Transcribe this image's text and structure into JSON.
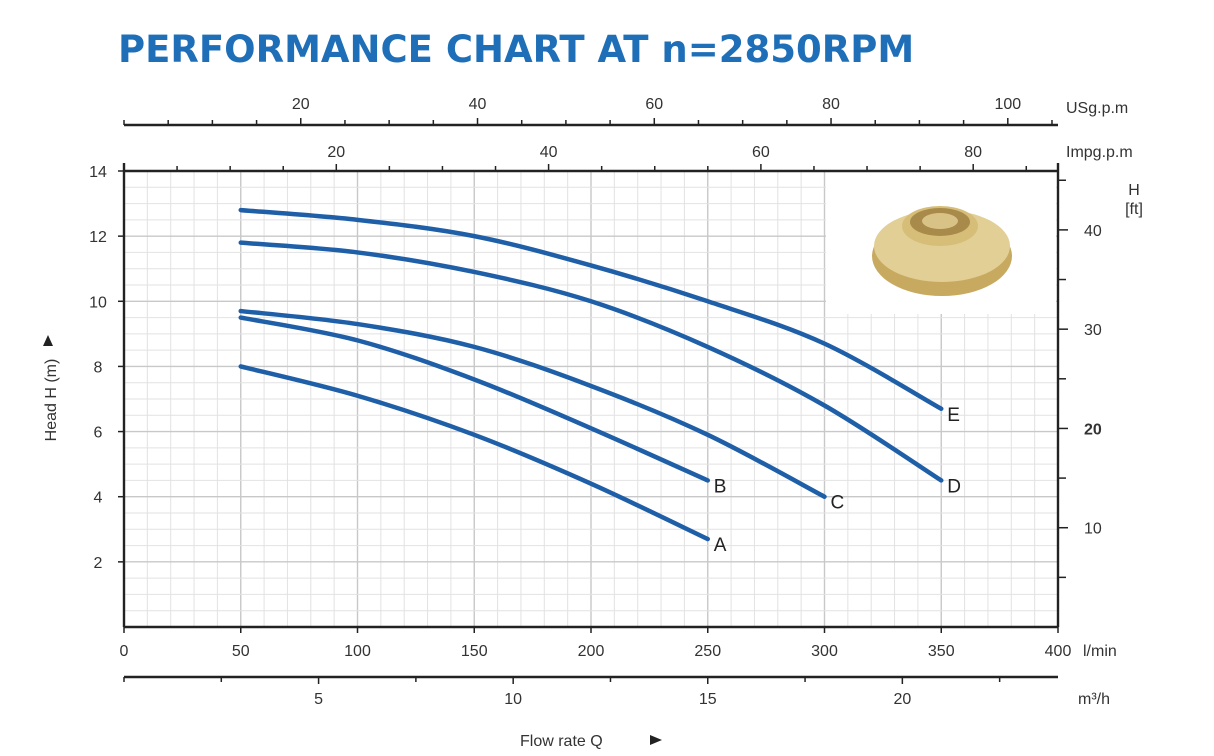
{
  "title": "PERFORMANCE CHART AT n=2850RPM",
  "colors": {
    "title": "#1e6fb8",
    "curve": "#1f5fa8",
    "axis": "#222222",
    "grid": "#cfcfcf"
  },
  "impeller_image": "impeller-photo",
  "chart_data": {
    "type": "line",
    "title": "PERFORMANCE CHART AT n=2850RPM",
    "xlabel": "Flow rate Q",
    "ylabel": "Head H (m)",
    "x_unit": "l/min",
    "xlim": [
      0,
      400
    ],
    "ylim": [
      0,
      14
    ],
    "x_ticks": [
      0,
      50,
      100,
      150,
      200,
      250,
      300,
      350,
      400
    ],
    "y_ticks": [
      2,
      4,
      6,
      8,
      10,
      12,
      14
    ],
    "grid": true,
    "axes": {
      "usgpm": {
        "unit": "USg.p.m",
        "ticks": [
          20,
          40,
          60,
          80,
          100
        ]
      },
      "impgpm": {
        "unit": "Impg.p.m",
        "ticks": [
          20,
          40,
          60,
          80
        ]
      },
      "m3h": {
        "unit": "m³/h",
        "ticks": [
          5,
          10,
          15,
          20
        ]
      },
      "ft": {
        "unit_line1": "H",
        "unit_line2": "[ft]",
        "ticks": [
          10,
          20,
          30,
          40
        ],
        "bold_tick": 20
      }
    },
    "series": [
      {
        "name": "A",
        "x": [
          50,
          100,
          150,
          200,
          250
        ],
        "y": [
          8.0,
          7.1,
          5.9,
          4.4,
          2.7
        ]
      },
      {
        "name": "B",
        "x": [
          50,
          100,
          150,
          200,
          250
        ],
        "y": [
          9.5,
          8.8,
          7.6,
          6.1,
          4.5
        ]
      },
      {
        "name": "C",
        "x": [
          50,
          100,
          150,
          200,
          250,
          300
        ],
        "y": [
          9.7,
          9.3,
          8.6,
          7.4,
          5.9,
          4.0
        ]
      },
      {
        "name": "D",
        "x": [
          50,
          100,
          150,
          200,
          250,
          300,
          350
        ],
        "y": [
          11.8,
          11.5,
          10.9,
          10.0,
          8.6,
          6.8,
          4.5
        ]
      },
      {
        "name": "E",
        "x": [
          50,
          100,
          150,
          200,
          250,
          300,
          350
        ],
        "y": [
          12.8,
          12.5,
          12.0,
          11.1,
          10.0,
          8.7,
          6.7
        ]
      }
    ]
  }
}
